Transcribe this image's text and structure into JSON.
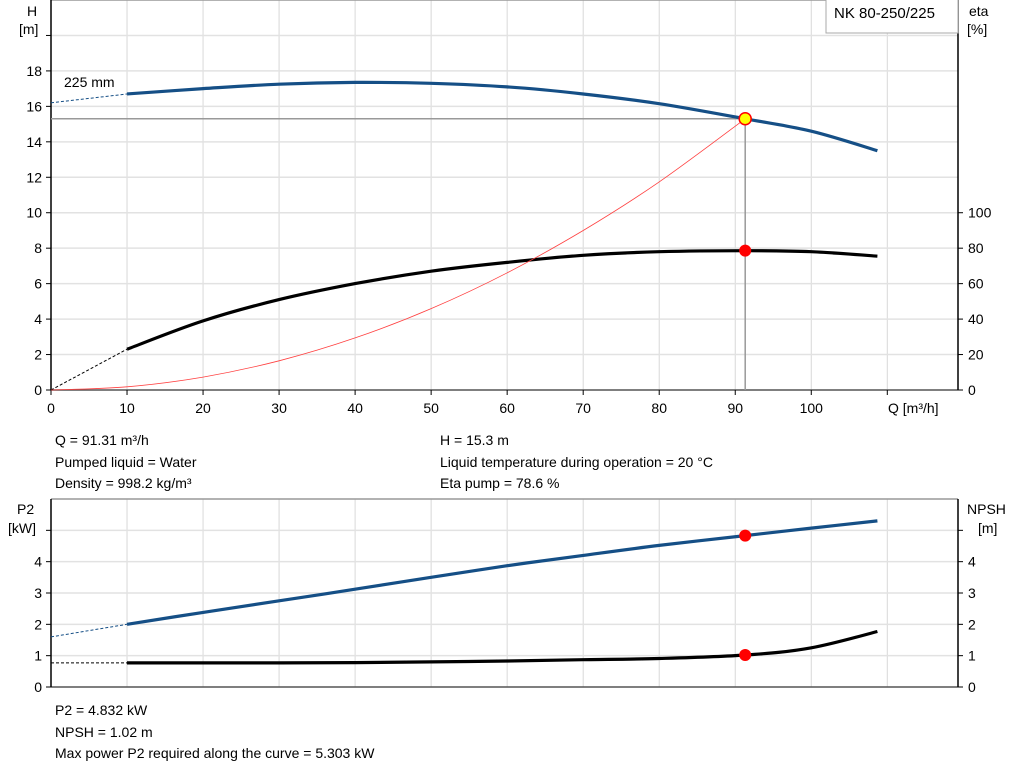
{
  "chart_data": [
    {
      "type": "line",
      "title": "NK 80-250/225",
      "xlabel": "Q [m³/h]",
      "xlim": [
        0,
        119.3
      ],
      "xticks": [
        "0",
        "10",
        "20",
        "30",
        "40",
        "50",
        "60",
        "70",
        "80",
        "90",
        "100"
      ],
      "grid": true,
      "y_left": {
        "label": "H",
        "unit": "[m]",
        "lim": [
          0,
          22
        ],
        "ticks": [
          "0",
          "2",
          "4",
          "6",
          "8",
          "10",
          "12",
          "14",
          "16",
          "18"
        ]
      },
      "y_right": {
        "label": "eta",
        "unit": "[%]",
        "lim": [
          0,
          220
        ],
        "ticks": [
          "0",
          "20",
          "40",
          "60",
          "80",
          "100"
        ]
      },
      "annotation": "225 mm",
      "series": [
        {
          "key": "H",
          "axis": "left",
          "color": "#154f86",
          "x": [
            10,
            20,
            30,
            40,
            50,
            60,
            70,
            80,
            91.31,
            100,
            108.7
          ],
          "y": [
            16.7,
            17.0,
            17.25,
            17.35,
            17.3,
            17.1,
            16.7,
            16.15,
            15.3,
            14.6,
            13.5
          ],
          "extrapolated": {
            "x": [
              0,
              10
            ],
            "y": [
              16.2,
              16.7
            ]
          }
        },
        {
          "key": "eta",
          "axis": "right",
          "color": "#000000",
          "x": [
            10,
            20,
            30,
            40,
            50,
            60,
            70,
            80,
            91.31,
            100,
            108.7
          ],
          "y": [
            23,
            39,
            51,
            60,
            67,
            72,
            76,
            78,
            78.6,
            78,
            75.5
          ],
          "extrapolated": {
            "x": [
              0,
              10
            ],
            "y": [
              0,
              23
            ]
          }
        },
        {
          "key": "system",
          "axis": "left",
          "color": "#ff4040",
          "x": [
            0,
            10,
            20,
            30,
            40,
            50,
            60,
            70,
            80,
            91.31
          ],
          "y": [
            0,
            0.18,
            0.73,
            1.65,
            2.94,
            4.59,
            6.61,
            9.0,
            11.74,
            15.3
          ]
        }
      ],
      "duty_point": {
        "Q": 91.31,
        "H": 15.3,
        "eta": 78.6
      }
    },
    {
      "type": "line",
      "xlim": [
        0,
        119.3
      ],
      "grid": true,
      "y_left": {
        "label": "P2",
        "unit": "[kW]",
        "lim": [
          0,
          6
        ],
        "ticks": [
          "0",
          "1",
          "2",
          "3",
          "4"
        ]
      },
      "y_right": {
        "label": "NPSH",
        "unit": "[m]",
        "lim": [
          0,
          6
        ],
        "ticks": [
          "0",
          "1",
          "2",
          "3",
          "4"
        ]
      },
      "series": [
        {
          "key": "P2",
          "color": "#154f86",
          "x": [
            10,
            20,
            30,
            40,
            50,
            60,
            70,
            80,
            91.31,
            100,
            108.7
          ],
          "y": [
            2.0,
            2.38,
            2.75,
            3.12,
            3.5,
            3.87,
            4.2,
            4.52,
            4.832,
            5.07,
            5.3
          ],
          "extrapolated": {
            "x": [
              0,
              10
            ],
            "y": [
              1.6,
              2.0
            ]
          }
        },
        {
          "key": "NPSH",
          "color": "#000000",
          "x": [
            10,
            20,
            30,
            40,
            50,
            60,
            70,
            80,
            91.31,
            100,
            108.7
          ],
          "y": [
            0.77,
            0.77,
            0.77,
            0.78,
            0.8,
            0.83,
            0.87,
            0.91,
            1.02,
            1.25,
            1.77
          ],
          "extrapolated": {
            "x": [
              0,
              10
            ],
            "y": [
              0.77,
              0.77
            ]
          }
        }
      ],
      "duty_point": {
        "Q": 91.31,
        "P2": 4.832,
        "NPSH": 1.02
      }
    }
  ],
  "info": {
    "q": "Q = 91.31 m³/h",
    "liquid": "Pumped liquid = Water",
    "density": "Density = 998.2 kg/m³",
    "h": "H = 15.3 m",
    "temp": "Liquid temperature during operation = 20 °C",
    "eta": "Eta pump = 78.6 %",
    "p2": "P2 = 4.832 kW",
    "npsh": "NPSH = 1.02 m",
    "maxp2": "Max power P2 required along the curve = 5.303 kW"
  }
}
